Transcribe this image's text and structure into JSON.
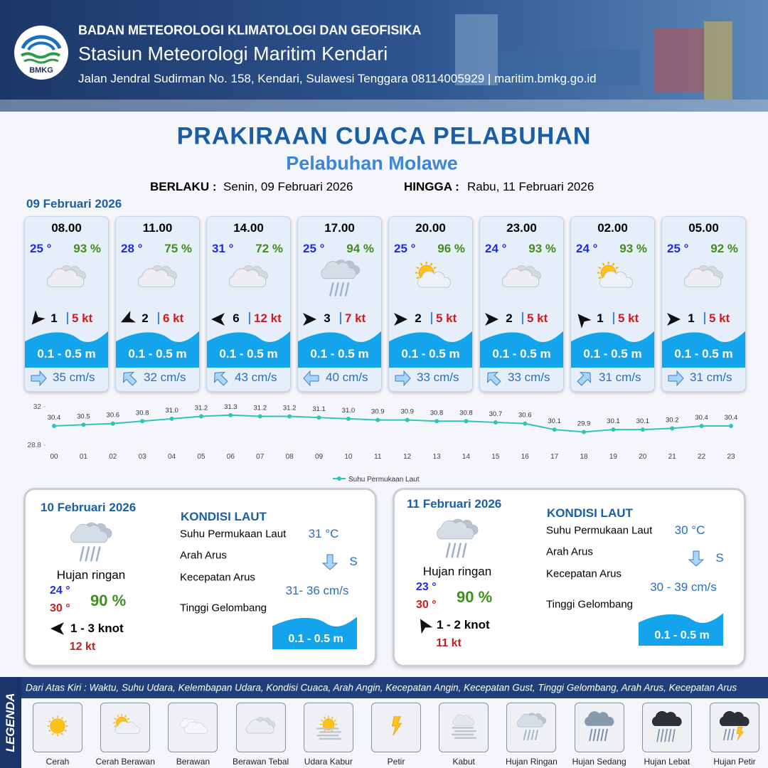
{
  "header": {
    "logo_text": "BMKG",
    "org": "BADAN METEOROLOGI KLIMATOLOGI DAN GEOFISIKA",
    "station": "Stasiun Meteorologi Maritim Kendari",
    "address": "Jalan Jendral Sudirman No. 158, Kendari, Sulawesi Tenggara  08114005929 | maritim.bmkg.go.id"
  },
  "title": "PRAKIRAAN CUACA PELABUHAN",
  "subtitle": "Pelabuhan Molawe",
  "validity": {
    "from_label": "BERLAKU :",
    "from": "Senin, 09 Februari 2026",
    "to_label": "HINGGA :",
    "to": "Rabu, 11 Februari 2026"
  },
  "day1": {
    "date": "09 Februari 2026",
    "cards": [
      {
        "time": "08.00",
        "temp": "25 °",
        "humidity": "93 %",
        "weather": "Berawan Tebal",
        "wind_dir_deg": 130,
        "wind": "1",
        "gust": "5 kt",
        "wave": "0.1 - 0.5 m",
        "current_dir_deg": 0,
        "current": "35 cm/s"
      },
      {
        "time": "11.00",
        "temp": "28 °",
        "humidity": "75 %",
        "weather": "Berawan Tebal",
        "wind_dir_deg": 155,
        "wind": "2",
        "gust": "6 kt",
        "wave": "0.1 - 0.5 m",
        "current_dir_deg": 225,
        "current": "32 cm/s"
      },
      {
        "time": "14.00",
        "temp": "31 °",
        "humidity": "72 %",
        "weather": "Berawan Tebal",
        "wind_dir_deg": 180,
        "wind": "6",
        "gust": "12 kt",
        "wave": "0.1 - 0.5 m",
        "current_dir_deg": 225,
        "current": "43 cm/s"
      },
      {
        "time": "17.00",
        "temp": "25 °",
        "humidity": "94 %",
        "weather": "Hujan Ringan",
        "wind_dir_deg": 0,
        "wind": "3",
        "gust": "7 kt",
        "wave": "0.1 - 0.5 m",
        "current_dir_deg": 180,
        "current": "40 cm/s"
      },
      {
        "time": "20.00",
        "temp": "25 °",
        "humidity": "96 %",
        "weather": "Cerah Berawan",
        "wind_dir_deg": 0,
        "wind": "2",
        "gust": "5 kt",
        "wave": "0.1 - 0.5 m",
        "current_dir_deg": 0,
        "current": "33 cm/s"
      },
      {
        "time": "23.00",
        "temp": "24 °",
        "humidity": "93 %",
        "weather": "Berawan Tebal",
        "wind_dir_deg": 0,
        "wind": "2",
        "gust": "5 kt",
        "wave": "0.1 - 0.5 m",
        "current_dir_deg": 225,
        "current": "33 cm/s"
      },
      {
        "time": "02.00",
        "temp": "24 °",
        "humidity": "93 %",
        "weather": "Cerah Berawan",
        "wind_dir_deg": 230,
        "wind": "1",
        "gust": "5 kt",
        "wave": "0.1 - 0.5 m",
        "current_dir_deg": 315,
        "current": "31 cm/s"
      },
      {
        "time": "05.00",
        "temp": "25 °",
        "humidity": "92 %",
        "weather": "Berawan Tebal",
        "wind_dir_deg": 0,
        "wind": "1",
        "gust": "5 kt",
        "wave": "0.1 - 0.5 m",
        "current_dir_deg": 0,
        "current": "31 cm/s"
      }
    ]
  },
  "chart_data": {
    "type": "line",
    "categories": [
      "00",
      "01",
      "02",
      "03",
      "04",
      "05",
      "06",
      "07",
      "08",
      "09",
      "10",
      "11",
      "12",
      "13",
      "14",
      "15",
      "16",
      "17",
      "18",
      "19",
      "20",
      "21",
      "22",
      "23"
    ],
    "series": [
      {
        "name": "Suhu Permukaan Laut",
        "color": "#2ec4b6",
        "values": [
          30.4,
          30.5,
          30.6,
          30.8,
          31.0,
          31.2,
          31.3,
          31.2,
          31.2,
          31.1,
          31.0,
          30.9,
          30.9,
          30.8,
          30.8,
          30.7,
          30.6,
          30.1,
          29.9,
          30.1,
          30.1,
          30.2,
          30.4,
          30.4
        ],
        "value_labels": [
          "30.4",
          "30.5",
          "30.6",
          "30.8",
          "31.0",
          "31.2",
          "31.3",
          "31.2",
          "31.2",
          "31.1",
          "31.0",
          "30.9",
          "30.9",
          "30.8",
          "30.8",
          "30.7",
          "30.6",
          "30.1",
          "29.9",
          "30.1",
          "30.1",
          "30.2",
          "30.4",
          "30.4"
        ]
      }
    ],
    "ylim": [
      28.8,
      32
    ],
    "yticks": [
      28.8,
      32
    ]
  },
  "days": [
    {
      "date": "10 Februari 2026",
      "weather": "Hujan Ringan",
      "condition": "Hujan ringan",
      "temp_min": "24 °",
      "temp_max": "30 °",
      "humidity": "90 %",
      "wind_dir_deg": 180,
      "wind": "1 - 3 knot",
      "gust": "12 kt",
      "kondisi_title": "KONDISI LAUT",
      "labels": [
        "Suhu Permukaan Laut",
        "Arah Arus",
        "Kecepatan Arus",
        "Tinggi Gelombang"
      ],
      "sst": "31 °C",
      "current_dir": "S",
      "current_speed": "31- 36 cm/s",
      "wave": "0.1 - 0.5 m"
    },
    {
      "date": "11 Februari 2026",
      "weather": "Hujan Ringan",
      "condition": "Hujan ringan",
      "temp_min": "23 °",
      "temp_max": "30 °",
      "humidity": "90 %",
      "wind_dir_deg": 240,
      "wind": "1 - 2 knot",
      "gust": "11 kt",
      "kondisi_title": "KONDISI LAUT",
      "labels": [
        "Suhu Permukaan Laut",
        "Arah Arus",
        "Kecepatan Arus",
        "Tinggi Gelombang"
      ],
      "sst": "30 °C",
      "current_dir": "S",
      "current_speed": "30 - 39 cm/s",
      "wave": "0.1 - 0.5 m"
    }
  ],
  "legend": {
    "title": "LEGENDA",
    "description": "Dari Atas Kiri : Waktu, Suhu Udara, Kelembapan Udara, Kondisi Cuaca, Arah Angin, Kecepatan Angin, Kecepatan Gust, Tinggi Gelombang, Arah Arus, Kecepatan Arus",
    "items": [
      "Cerah",
      "Cerah Berawan",
      "Berawan",
      "Berawan Tebal",
      "Udara Kabur",
      "Petir",
      "Kabut",
      "Hujan Ringan",
      "Hujan Sedang",
      "Hujan Lebat",
      "Hujan Petir"
    ]
  }
}
